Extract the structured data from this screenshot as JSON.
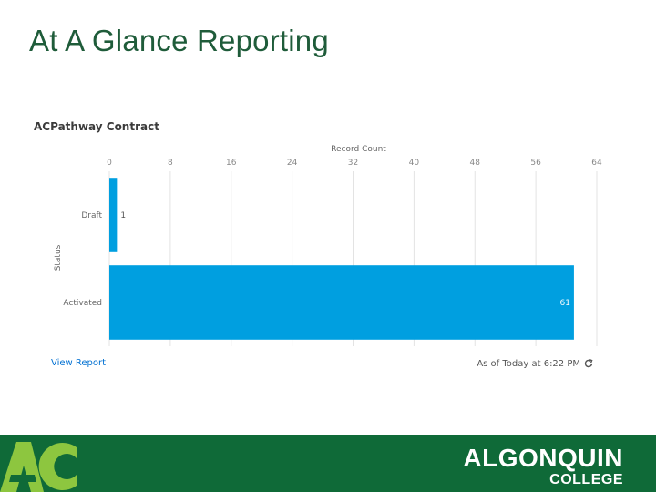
{
  "slide": {
    "title": "At A Glance Reporting"
  },
  "report": {
    "title": "ACPathway Contract",
    "view_report_label": "View Report",
    "as_of_label": "As of Today at 6:22 PM"
  },
  "chart_data": {
    "type": "bar",
    "orientation": "horizontal",
    "xlabel": "Record Count",
    "ylabel": "Status",
    "xlim": [
      0,
      64
    ],
    "xticks": [
      0,
      8,
      16,
      24,
      32,
      40,
      48,
      56,
      64
    ],
    "categories": [
      "Draft",
      "Activated"
    ],
    "values": [
      1,
      61
    ],
    "bar_color": "#009fe0",
    "grid": true
  },
  "footer": {
    "brand_main": "ALGONQUIN",
    "brand_sub": "COLLEGE",
    "logo_icon": "ac-logo-icon",
    "background": "#0f6a38"
  }
}
